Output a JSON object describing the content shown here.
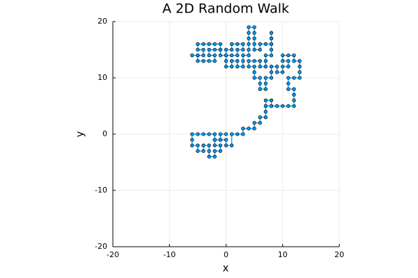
{
  "chart_data": {
    "type": "scatter",
    "title": "A 2D Random Walk",
    "x_label": "x",
    "y_label": "y",
    "color": "#009afa",
    "lines": true,
    "grid": true,
    "xlim": [
      -20,
      20
    ],
    "ylim": [
      -20,
      20
    ],
    "xticks": [
      -20,
      -10,
      0,
      10,
      20
    ],
    "yticks": [
      -20,
      -10,
      0,
      10,
      20
    ],
    "series": [
      {
        "x": [
          0,
          -1,
          -1,
          -2,
          -2,
          -3,
          -4,
          -5,
          -6,
          -6,
          -6,
          -5,
          -5,
          -4,
          -4,
          -3,
          -3,
          -3,
          -2,
          -2,
          -1,
          -1,
          -2,
          -2,
          -1,
          0,
          0,
          1,
          1,
          2,
          3,
          3,
          4,
          5,
          5,
          6,
          6,
          7,
          7,
          7,
          8,
          8,
          7,
          7,
          8,
          9,
          10,
          11,
          12,
          12,
          12,
          12,
          11,
          11,
          11,
          12,
          13,
          13,
          13,
          13,
          12,
          12,
          11,
          10,
          10,
          11,
          11,
          10,
          10,
          9,
          9,
          8,
          8,
          8,
          7,
          7,
          7,
          6,
          6,
          6,
          5,
          5,
          5,
          4,
          4,
          5,
          6,
          6,
          7,
          7,
          7,
          8,
          8,
          8,
          8,
          8,
          8,
          8,
          7,
          6,
          6,
          5,
          5,
          5,
          5,
          5,
          4,
          4,
          4,
          4,
          4,
          4,
          3,
          3,
          3,
          2,
          2,
          1,
          1,
          0,
          0,
          0,
          0,
          1,
          1,
          2,
          3,
          3,
          2,
          2,
          1,
          0,
          -1,
          -1,
          -1,
          -2,
          -3,
          -4,
          -5,
          -5,
          -4,
          -4,
          -5,
          -6,
          -5,
          -5,
          -4,
          -3,
          -2,
          -2,
          -3,
          -3,
          -2,
          -1
        ],
        "y": [
          0,
          0,
          -1,
          -1,
          0,
          0,
          0,
          0,
          0,
          -1,
          -2,
          -2,
          -3,
          -3,
          -2,
          -2,
          -3,
          -4,
          -4,
          -3,
          -3,
          -2,
          -2,
          -1,
          -1,
          -1,
          -2,
          -2,
          0,
          0,
          0,
          1,
          1,
          1,
          2,
          2,
          3,
          3,
          4,
          5,
          5,
          6,
          6,
          5,
          5,
          5,
          5,
          5,
          5,
          6,
          7,
          8,
          8,
          9,
          10,
          10,
          10,
          11,
          12,
          13,
          13,
          14,
          14,
          14,
          13,
          13,
          12,
          12,
          11,
          11,
          12,
          12,
          11,
          10,
          10,
          9,
          8,
          8,
          9,
          10,
          10,
          11,
          12,
          12,
          13,
          13,
          13,
          12,
          12,
          13,
          14,
          14,
          15,
          16,
          17,
          18,
          17,
          16,
          16,
          16,
          15,
          15,
          16,
          17,
          18,
          19,
          19,
          18,
          17,
          16,
          15,
          14,
          14,
          13,
          12,
          12,
          13,
          13,
          12,
          12,
          13,
          14,
          15,
          15,
          16,
          16,
          16,
          15,
          15,
          14,
          14,
          14,
          14,
          15,
          16,
          16,
          16,
          16,
          16,
          15,
          15,
          14,
          14,
          14,
          14,
          13,
          13,
          13,
          13,
          14,
          14,
          15,
          15,
          15
        ]
      }
    ]
  }
}
